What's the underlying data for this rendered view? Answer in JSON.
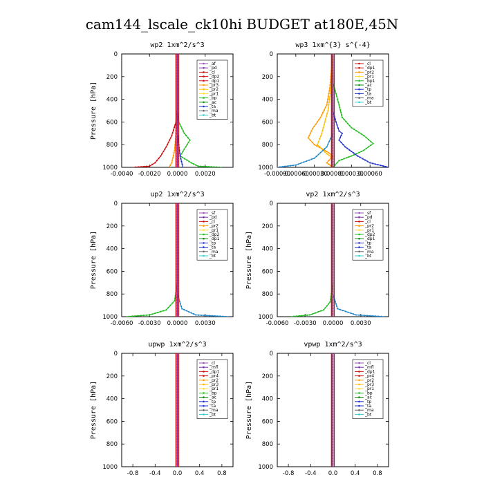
{
  "figure_title": "cam144_lscale_ck10hi  BUDGET at180E,45N",
  "chart_data": [
    {
      "type": "line",
      "title": "wp2  1xm^2/s^3",
      "ylabel": "Pressure [hPa]",
      "y_ticks": [
        "0",
        "200",
        "400",
        "600",
        "800",
        "1000"
      ],
      "ylim": [
        1000,
        0
      ],
      "xlim": [
        -0.004,
        0.004
      ],
      "x_ticks": [
        -0.004,
        -0.002,
        0.0,
        0.002
      ],
      "x_tick_labels": [
        "-0.0040",
        "-0.0020",
        "0.0000",
        "0.0020"
      ],
      "legend": [
        {
          "name": "_af",
          "color": "#9a4fb5"
        },
        {
          "name": "_pd",
          "color": "#7a2fa0"
        },
        {
          "name": "_cl",
          "color": "#cc1111"
        },
        {
          "name": "_dp2",
          "color": "#cc1111"
        },
        {
          "name": "_dp1",
          "color": "#cc1111"
        },
        {
          "name": "_pr3",
          "color": "#ff9900"
        },
        {
          "name": "_pr2",
          "color": "#ffbb00"
        },
        {
          "name": "_pr1",
          "color": "#ffdd33"
        },
        {
          "name": "_bp",
          "color": "#22bb22"
        },
        {
          "name": "_ac",
          "color": "#118811"
        },
        {
          "name": "_ta",
          "color": "#2233cc"
        },
        {
          "name": "_ma",
          "color": "#666666"
        },
        {
          "name": "_bt",
          "color": "#33cccc"
        }
      ],
      "series": [
        {
          "color": "#22bb22",
          "points": [
            [
              0,
              0
            ],
            [
              0,
              300
            ],
            [
              0,
              500
            ],
            [
              0.0001,
              600
            ],
            [
              0.0005,
              700
            ],
            [
              0.0009,
              760
            ],
            [
              0.0005,
              840
            ],
            [
              0.0002,
              900
            ],
            [
              0.001,
              960
            ],
            [
              0.0015,
              990
            ],
            [
              0.0032,
              1000
            ]
          ]
        },
        {
          "color": "#cc1111",
          "points": [
            [
              0,
              0
            ],
            [
              0,
              300
            ],
            [
              0,
              480
            ],
            [
              -0.0001,
              600
            ],
            [
              -0.0004,
              720
            ],
            [
              -0.0008,
              820
            ],
            [
              -0.0012,
              900
            ],
            [
              -0.0016,
              960
            ],
            [
              -0.002,
              990
            ],
            [
              -0.0032,
              1000
            ]
          ]
        },
        {
          "color": "#ff9900",
          "points": [
            [
              0,
              0
            ],
            [
              0,
              500
            ],
            [
              -0.0001,
              700
            ],
            [
              -0.0002,
              850
            ],
            [
              -0.0004,
              960
            ],
            [
              -0.0006,
              1000
            ]
          ]
        },
        {
          "color": "#2233cc",
          "points": [
            [
              0,
              0
            ],
            [
              0,
              700
            ],
            [
              0.0002,
              900
            ],
            [
              0.0004,
              1000
            ]
          ]
        },
        {
          "color": "#7a2fa0",
          "points": [
            [
              0,
              0
            ],
            [
              0,
              1000
            ]
          ]
        }
      ]
    },
    {
      "type": "line",
      "title": "wp3  1xm^{3} s^{-4}",
      "ylabel": "",
      "y_ticks": [
        "0",
        "200",
        "400",
        "600",
        "800",
        "1000"
      ],
      "ylim": [
        1000,
        0
      ],
      "xlim": [
        -0.0009,
        0.0009
      ],
      "x_ticks": [
        -0.0009,
        -0.0006,
        -0.0003,
        0.0,
        0.0003,
        0.0006
      ],
      "x_tick_labels": [
        "-0.00090",
        "-0.00060",
        "-0.00030",
        "0.00000",
        "0.00030",
        "0.00060"
      ],
      "legend": [
        {
          "name": "_cl",
          "color": "#cc1111"
        },
        {
          "name": "_dp1",
          "color": "#cc1111"
        },
        {
          "name": "_pr2",
          "color": "#ff9900"
        },
        {
          "name": "_pr1",
          "color": "#ffdd33"
        },
        {
          "name": "_bp1",
          "color": "#22bb22"
        },
        {
          "name": "_ac",
          "color": "#118811"
        },
        {
          "name": "_tp",
          "color": "#2233cc"
        },
        {
          "name": "_ta",
          "color": "#2233cc"
        },
        {
          "name": "_ma",
          "color": "#666666"
        },
        {
          "name": "_bt",
          "color": "#33cccc"
        }
      ],
      "series": [
        {
          "color": "#22bb22",
          "points": [
            [
              0,
              0
            ],
            [
              0,
              250
            ],
            [
              5e-05,
              350
            ],
            [
              0.0001,
              450
            ],
            [
              0.00015,
              560
            ],
            [
              0.0003,
              650
            ],
            [
              0.0005,
              720
            ],
            [
              0.00065,
              790
            ],
            [
              0.0005,
              850
            ],
            [
              0.0003,
              900
            ],
            [
              0.0001,
              940
            ],
            [
              0,
              1000
            ]
          ]
        },
        {
          "color": "#ff9900",
          "points": [
            [
              0,
              0
            ],
            [
              -5e-05,
              300
            ],
            [
              -0.0001,
              450
            ],
            [
              -0.0002,
              560
            ],
            [
              -0.00033,
              660
            ],
            [
              -0.0004,
              740
            ],
            [
              -0.0003,
              800
            ],
            [
              -0.0001,
              860
            ],
            [
              0,
              900
            ],
            [
              -0.0001,
              960
            ],
            [
              0,
              1000
            ]
          ]
        },
        {
          "color": "#ffbb00",
          "points": [
            [
              0,
              0
            ],
            [
              -3e-05,
              300
            ],
            [
              -8e-05,
              500
            ],
            [
              -0.00018,
              700
            ],
            [
              -0.00025,
              800
            ],
            [
              -0.0001,
              880
            ],
            [
              0,
              920
            ]
          ]
        },
        {
          "color": "#2233cc",
          "points": [
            [
              0,
              0
            ],
            [
              0,
              500
            ],
            [
              5e-05,
              600
            ],
            [
              0.0001,
              680
            ],
            [
              0.00015,
              700
            ],
            [
              0.0001,
              760
            ],
            [
              0.0002,
              820
            ],
            [
              0.0004,
              900
            ],
            [
              0.0006,
              960
            ],
            [
              0.0009,
              1000
            ]
          ]
        },
        {
          "color": "#2288cc",
          "points": [
            [
              0,
              0
            ],
            [
              0,
              700
            ],
            [
              -0.0001,
              820
            ],
            [
              -0.0003,
              920
            ],
            [
              -0.0006,
              980
            ],
            [
              -0.0009,
              1000
            ]
          ]
        },
        {
          "color": "#cc1111",
          "points": [
            [
              0,
              0
            ],
            [
              0,
              1000
            ]
          ]
        }
      ]
    },
    {
      "type": "line",
      "title": "up2  1xm^2/s^3",
      "ylabel": "Pressure [hPa]",
      "y_ticks": [
        "0",
        "200",
        "400",
        "600",
        "800",
        "1000"
      ],
      "ylim": [
        1000,
        0
      ],
      "xlim": [
        -0.006,
        0.006
      ],
      "x_ticks": [
        -0.006,
        -0.003,
        0.0,
        0.003
      ],
      "x_tick_labels": [
        "-0.0060",
        "-0.0030",
        "0.0000",
        "0.0030"
      ],
      "legend": [
        {
          "name": "_sf",
          "color": "#9a4fb5"
        },
        {
          "name": "_pd",
          "color": "#7a2fa0"
        },
        {
          "name": "_cl",
          "color": "#cc1111"
        },
        {
          "name": "_pr2",
          "color": "#ff9900"
        },
        {
          "name": "_pr1",
          "color": "#ffdd33"
        },
        {
          "name": "_dp2",
          "color": "#22bb22"
        },
        {
          "name": "_dp1",
          "color": "#118811"
        },
        {
          "name": "_tp",
          "color": "#2233cc"
        },
        {
          "name": "_ta",
          "color": "#2233cc"
        },
        {
          "name": "_ma",
          "color": "#666666"
        },
        {
          "name": "_bt",
          "color": "#33cccc"
        }
      ],
      "series": [
        {
          "color": "#22bb22",
          "points": [
            [
              0,
              0
            ],
            [
              0,
              700
            ],
            [
              -0.0003,
              860
            ],
            [
              -0.0012,
              940
            ],
            [
              -0.003,
              985
            ],
            [
              -0.0055,
              1000
            ]
          ]
        },
        {
          "color": "#2288cc",
          "points": [
            [
              0,
              0
            ],
            [
              0,
              800
            ],
            [
              0.0005,
              930
            ],
            [
              0.002,
              985
            ],
            [
              0.0055,
              1000
            ]
          ]
        },
        {
          "color": "#cc1111",
          "points": [
            [
              0,
              0
            ],
            [
              0,
              1000
            ]
          ]
        }
      ]
    },
    {
      "type": "line",
      "title": "vp2  1xm^2/s^3",
      "ylabel": "Pressure [hPa]",
      "y_ticks": [
        "0",
        "200",
        "400",
        "600",
        "800",
        "1000"
      ],
      "ylim": [
        1000,
        0
      ],
      "xlim": [
        -0.006,
        0.006
      ],
      "x_ticks": [
        -0.006,
        -0.003,
        0.0,
        0.003
      ],
      "x_tick_labels": [
        "-0.0060",
        "-0.0030",
        "0.0000",
        "0.0030"
      ],
      "legend": [
        {
          "name": "_sf",
          "color": "#9a4fb5"
        },
        {
          "name": "_pd",
          "color": "#7a2fa0"
        },
        {
          "name": "_cl",
          "color": "#cc1111"
        },
        {
          "name": "_pr2",
          "color": "#ff9900"
        },
        {
          "name": "_pr1",
          "color": "#ffdd33"
        },
        {
          "name": "_dp2",
          "color": "#22bb22"
        },
        {
          "name": "_dp1",
          "color": "#118811"
        },
        {
          "name": "_tp",
          "color": "#2233cc"
        },
        {
          "name": "_ta",
          "color": "#2233cc"
        },
        {
          "name": "_ma",
          "color": "#666666"
        },
        {
          "name": "_bt",
          "color": "#33cccc"
        }
      ],
      "series": [
        {
          "color": "#22bb22",
          "points": [
            [
              0,
              0
            ],
            [
              0,
              700
            ],
            [
              -0.0003,
              870
            ],
            [
              -0.001,
              940
            ],
            [
              -0.0025,
              985
            ],
            [
              -0.0045,
              1000
            ]
          ]
        },
        {
          "color": "#2288cc",
          "points": [
            [
              0,
              0
            ],
            [
              0,
              800
            ],
            [
              0.0005,
              930
            ],
            [
              0.0025,
              985
            ],
            [
              0.0055,
              1000
            ]
          ]
        },
        {
          "color": "#cc1111",
          "points": [
            [
              0,
              0
            ],
            [
              0,
              1000
            ]
          ]
        }
      ]
    },
    {
      "type": "line",
      "title": "upwp  1xm^2/s^3",
      "ylabel": "Pressure [hPa]",
      "y_ticks": [
        "0",
        "200",
        "400",
        "600",
        "800",
        "1000"
      ],
      "ylim": [
        1000,
        0
      ],
      "xlim": [
        -1,
        1
      ],
      "x_ticks": [
        -0.8,
        -0.4,
        0.0,
        0.4,
        0.8
      ],
      "x_tick_labels": [
        "-0.8",
        "-0.4",
        "0.0",
        "0.4",
        "0.8"
      ],
      "legend": [
        {
          "name": "_cl",
          "color": "#9a4fb5"
        },
        {
          "name": "_mfl",
          "color": "#7a2fa0"
        },
        {
          "name": "_dp1",
          "color": "#cc1111"
        },
        {
          "name": "_pr4",
          "color": "#cc1111"
        },
        {
          "name": "_pr2",
          "color": "#ff9900"
        },
        {
          "name": "_pr3",
          "color": "#ffbb00"
        },
        {
          "name": "_pr1",
          "color": "#ffdd33"
        },
        {
          "name": "_bp",
          "color": "#22bb22"
        },
        {
          "name": "_ac",
          "color": "#118811"
        },
        {
          "name": "_tp",
          "color": "#2233cc"
        },
        {
          "name": "_ta",
          "color": "#2233cc"
        },
        {
          "name": "_ma",
          "color": "#666666"
        },
        {
          "name": "_bt",
          "color": "#33cccc"
        }
      ],
      "series": [
        {
          "color": "#7a2fa0",
          "points": [
            [
              0,
              0
            ],
            [
              0,
              1000
            ]
          ]
        }
      ]
    },
    {
      "type": "line",
      "title": "vpwp  1xm^2/s^3",
      "ylabel": "Pressure [hPa]",
      "y_ticks": [
        "0",
        "200",
        "400",
        "600",
        "800",
        "1000"
      ],
      "ylim": [
        1000,
        0
      ],
      "xlim": [
        -1,
        1
      ],
      "x_ticks": [
        -0.8,
        -0.4,
        0.0,
        0.4,
        0.8
      ],
      "x_tick_labels": [
        "-0.8",
        "-0.4",
        "0.0",
        "0.4",
        "0.8"
      ],
      "legend": [
        {
          "name": "_cl",
          "color": "#9a4fb5"
        },
        {
          "name": "_mfl",
          "color": "#7a2fa0"
        },
        {
          "name": "_dp1",
          "color": "#cc1111"
        },
        {
          "name": "_pr4",
          "color": "#cc1111"
        },
        {
          "name": "_pr2",
          "color": "#ff9900"
        },
        {
          "name": "_pr3",
          "color": "#ffbb00"
        },
        {
          "name": "_pr1",
          "color": "#ffdd33"
        },
        {
          "name": "_bp",
          "color": "#22bb22"
        },
        {
          "name": "_ac",
          "color": "#118811"
        },
        {
          "name": "_tp",
          "color": "#2233cc"
        },
        {
          "name": "_ta",
          "color": "#2233cc"
        },
        {
          "name": "_ma",
          "color": "#666666"
        },
        {
          "name": "_bt",
          "color": "#33cccc"
        }
      ],
      "series": [
        {
          "color": "#7a2fa0",
          "points": [
            [
              0,
              0
            ],
            [
              0,
              1000
            ]
          ]
        }
      ]
    }
  ]
}
